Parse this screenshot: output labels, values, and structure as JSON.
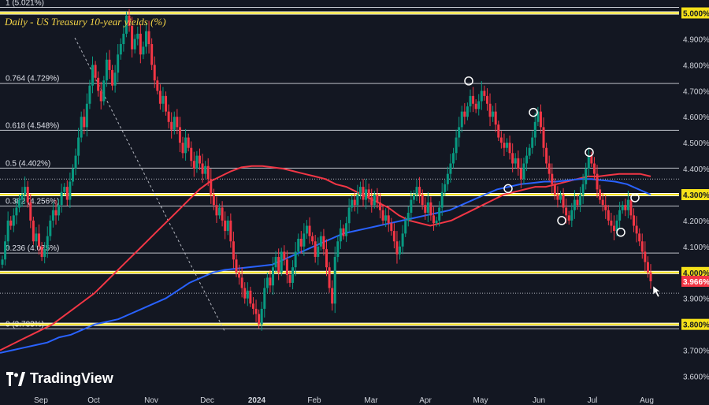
{
  "chart_data": {
    "type": "candlestick",
    "title": "Daily - US Treasury 10-year yields (%)",
    "ylim": [
      3.55,
      5.05
    ],
    "y_ticks": [
      "5.000%",
      "4.900%",
      "4.800%",
      "4.700%",
      "4.600%",
      "4.500%",
      "4.400%",
      "4.300%",
      "4.200%",
      "4.100%",
      "4.000%",
      "3.900%",
      "3.800%",
      "3.700%",
      "3.600%"
    ],
    "x_ticks": [
      "Sep",
      "Oct",
      "Nov",
      "Dec",
      "2024",
      "Feb",
      "Mar",
      "Apr",
      "May",
      "Jun",
      "Jul",
      "Aug"
    ],
    "current_price": {
      "label": "3.966%",
      "value": 3.966
    },
    "fib_levels": [
      {
        "label": "1 (5.021%)",
        "value": 5.021
      },
      {
        "label": "0.764 (4.729%)",
        "value": 4.729
      },
      {
        "label": "0.618 (4.548%)",
        "value": 4.548
      },
      {
        "label": "0.5 (4.402%)",
        "value": 4.402
      },
      {
        "label": "0.382 (4.256%)",
        "value": 4.256
      },
      {
        "label": "0.236 (4.075%)",
        "value": 4.075
      },
      {
        "label": "0 (3.783%)",
        "value": 3.783
      }
    ],
    "key_levels": [
      5.0,
      4.3,
      4.0,
      3.8
    ],
    "closes": [
      4.05,
      4.12,
      4.2,
      4.18,
      4.22,
      4.25,
      4.28,
      4.3,
      4.33,
      4.27,
      4.2,
      4.12,
      4.15,
      4.1,
      4.06,
      4.09,
      4.14,
      4.2,
      4.24,
      4.22,
      4.26,
      4.31,
      4.33,
      4.28,
      4.35,
      4.4,
      4.45,
      4.52,
      4.6,
      4.56,
      4.65,
      4.72,
      4.8,
      4.75,
      4.7,
      4.66,
      4.74,
      4.82,
      4.78,
      4.72,
      4.77,
      4.84,
      4.88,
      4.92,
      4.99,
      4.95,
      4.86,
      4.9,
      4.92,
      4.84,
      4.87,
      4.93,
      4.88,
      4.8,
      4.74,
      4.7,
      4.65,
      4.68,
      4.62,
      4.58,
      4.55,
      4.6,
      4.56,
      4.5,
      4.46,
      4.52,
      4.48,
      4.43,
      4.4,
      4.45,
      4.42,
      4.38,
      4.41,
      4.36,
      4.3,
      4.26,
      4.22,
      4.25,
      4.2,
      4.16,
      4.2,
      4.12,
      4.05,
      4.0,
      3.98,
      3.94,
      3.9,
      3.93,
      3.88,
      3.86,
      3.84,
      3.8,
      3.86,
      3.94,
      3.98,
      3.95,
      4.02,
      4.06,
      4.0,
      4.08,
      4.05,
      3.99,
      3.96,
      4.02,
      4.08,
      4.13,
      4.1,
      4.15,
      4.18,
      4.14,
      4.12,
      4.06,
      4.1,
      4.14,
      4.09,
      4.02,
      3.94,
      3.88,
      4.06,
      4.12,
      4.17,
      4.14,
      4.19,
      4.25,
      4.28,
      4.26,
      4.3,
      4.33,
      4.28,
      4.32,
      4.29,
      4.26,
      4.3,
      4.27,
      4.24,
      4.2,
      4.22,
      4.19,
      4.16,
      4.12,
      4.07,
      4.1,
      4.15,
      4.2,
      4.23,
      4.28,
      4.3,
      4.33,
      4.3,
      4.26,
      4.23,
      4.27,
      4.22,
      4.19,
      4.2,
      4.25,
      4.31,
      4.34,
      4.38,
      4.42,
      4.46,
      4.52,
      4.56,
      4.62,
      4.6,
      4.64,
      4.68,
      4.65,
      4.63,
      4.66,
      4.7,
      4.68,
      4.65,
      4.6,
      4.62,
      4.57,
      4.52,
      4.5,
      4.48,
      4.5,
      4.46,
      4.42,
      4.44,
      4.4,
      4.36,
      4.42,
      4.45,
      4.48,
      4.52,
      4.58,
      4.62,
      4.56,
      4.48,
      4.42,
      4.38,
      4.34,
      4.3,
      4.28,
      4.3,
      4.25,
      4.22,
      4.2,
      4.24,
      4.28,
      4.26,
      4.3,
      4.34,
      4.4,
      4.45,
      4.42,
      4.38,
      4.32,
      4.28,
      4.26,
      4.24,
      4.2,
      4.18,
      4.16,
      4.2,
      4.24,
      4.26,
      4.24,
      4.28,
      4.22,
      4.18,
      4.15,
      4.12,
      4.08,
      4.04,
      4.0,
      3.966
    ],
    "series": [
      {
        "name": "MA red",
        "color": "#f23645"
      },
      {
        "name": "MA blue",
        "color": "#2962ff"
      }
    ],
    "ma_red": [
      3.7,
      3.72,
      3.74,
      3.76,
      3.78,
      3.8,
      3.83,
      3.86,
      3.89,
      3.92,
      3.96,
      4.0,
      4.04,
      4.08,
      4.12,
      4.16,
      4.2,
      4.24,
      4.28,
      4.32,
      4.35,
      4.37,
      4.39,
      4.405,
      4.41,
      4.41,
      4.405,
      4.4,
      4.39,
      4.38,
      4.37,
      4.36,
      4.34,
      4.33,
      4.31,
      4.29,
      4.27,
      4.25,
      4.22,
      4.2,
      4.19,
      4.18,
      4.19,
      4.2,
      4.22,
      4.24,
      4.26,
      4.28,
      4.3,
      4.31,
      4.32,
      4.33,
      4.33,
      4.34,
      4.35,
      4.36,
      4.37,
      4.37,
      4.375,
      4.38,
      4.38,
      4.38,
      4.37
    ],
    "ma_blue": [
      3.69,
      3.7,
      3.71,
      3.72,
      3.73,
      3.75,
      3.76,
      3.78,
      3.8,
      3.81,
      3.82,
      3.84,
      3.86,
      3.88,
      3.9,
      3.93,
      3.96,
      3.98,
      4.0,
      4.01,
      4.015,
      4.02,
      4.025,
      4.03,
      4.05,
      4.07,
      4.09,
      4.11,
      4.13,
      4.15,
      4.16,
      4.17,
      4.18,
      4.19,
      4.2,
      4.21,
      4.22,
      4.23,
      4.24,
      4.26,
      4.28,
      4.3,
      4.32,
      4.33,
      4.34,
      4.345,
      4.35,
      4.35,
      4.355,
      4.36,
      4.36,
      4.355,
      4.35,
      4.34,
      4.32,
      4.3
    ]
  }
}
